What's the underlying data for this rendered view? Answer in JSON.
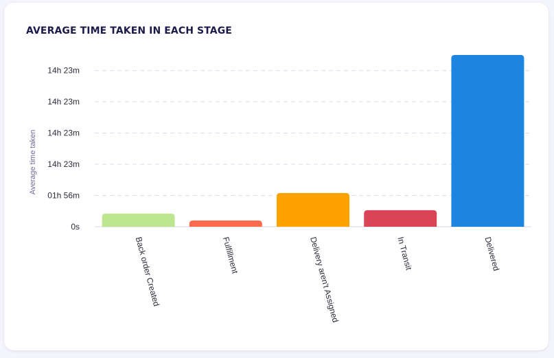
{
  "card": {
    "title": "AVERAGE TIME TAKEN IN EACH STAGE"
  },
  "chart_data": {
    "type": "bar",
    "title": "AVERAGE TIME TAKEN IN EACH STAGE",
    "xlabel": "",
    "ylabel": "Average time taken",
    "categories": [
      "Back order Created",
      "Fulfillment",
      "Delivery aren't Assigned",
      "In Transit",
      "Delivered"
    ],
    "values": [
      0.42,
      0.2,
      1.08,
      0.53,
      5.5
    ],
    "bar_colors": [
      "#bde690",
      "#fd6a4c",
      "#fea200",
      "#da4457",
      "#1c85e0"
    ],
    "y_ticks": [
      {
        "value": 0,
        "label": "0s"
      },
      {
        "value": 1,
        "label": "01h 56m"
      },
      {
        "value": 2,
        "label": "14h 23m"
      },
      {
        "value": 3,
        "label": "14h 23m"
      },
      {
        "value": 4,
        "label": "14h 23m"
      },
      {
        "value": 5,
        "label": "14h 23m"
      }
    ],
    "ylim": [
      0,
      5.5
    ],
    "grid": true,
    "grid_style": "dashed"
  }
}
